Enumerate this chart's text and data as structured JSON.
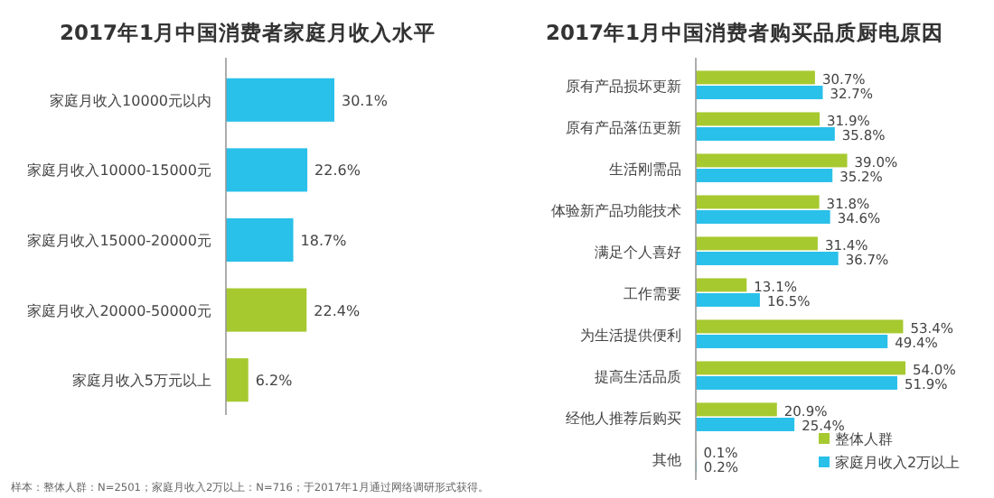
{
  "chart_data": [
    {
      "type": "bar",
      "orientation": "horizontal",
      "title": "2017年1月中国消费者家庭月收入水平",
      "categories": [
        "家庭月收入10000元以内",
        "家庭月收入10000-15000元",
        "家庭月收入15000-20000元",
        "家庭月收入20000-50000元",
        "家庭月收入5万元以上"
      ],
      "values": [
        30.1,
        22.6,
        18.7,
        22.4,
        6.2
      ],
      "colors": [
        "#29c0ea",
        "#29c0ea",
        "#29c0ea",
        "#a6c92f",
        "#a6c92f"
      ],
      "value_labels": [
        "30.1%",
        "22.6%",
        "18.7%",
        "22.4%",
        "6.2%"
      ],
      "annotations": [
        "样本：整体人群：N=2501；家庭月收入2万以上：N=716；于2017年1月通过网络调研形式获得。"
      ]
    },
    {
      "type": "bar",
      "orientation": "horizontal",
      "title": "2017年1月中国消费者购买品质厨电原因",
      "legend": "bottom right",
      "categories": [
        "原有产品损坏更新",
        "原有产品落伍更新",
        "生活刚需品",
        "体验新产品功能技术",
        "满足个人喜好",
        "工作需要",
        "为生活提供便利",
        "提高生活品质",
        "经他人推荐后购买",
        "其他"
      ],
      "series": [
        {
          "name": "整体人群",
          "color": "#a6c92f",
          "values": [
            30.7,
            31.9,
            39.0,
            31.8,
            31.4,
            13.1,
            53.4,
            54.0,
            20.9,
            0.1
          ],
          "value_labels": [
            "30.7%",
            "31.9%",
            "39.0%",
            "31.8%",
            "31.4%",
            "13.1%",
            "53.4%",
            "54.0%",
            "20.9%",
            "0.1%"
          ]
        },
        {
          "name": "家庭月收入2万以上",
          "color": "#29c0ea",
          "values": [
            32.7,
            35.8,
            35.2,
            34.6,
            36.7,
            16.5,
            49.4,
            51.9,
            25.4,
            0.2
          ],
          "value_labels": [
            "32.7%",
            "35.8%",
            "35.2%",
            "34.6%",
            "36.7%",
            "16.5%",
            "49.4%",
            "51.9%",
            "25.4%",
            "0.2%"
          ]
        }
      ]
    }
  ]
}
